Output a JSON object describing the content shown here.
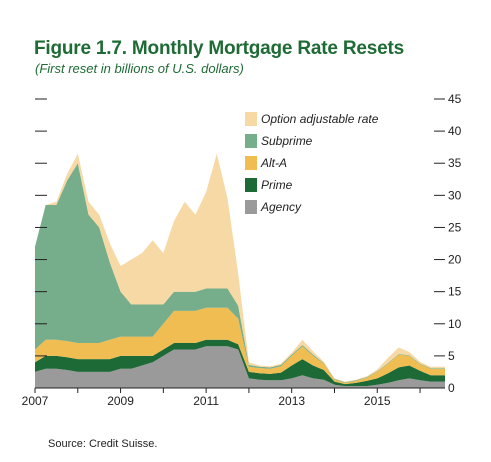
{
  "title": "Figure 1.7. Monthly Mortgage Rate Resets",
  "subtitle": "(First reset in billions of U.S. dollars)",
  "source": "Source: Credit Suisse.",
  "colors": {
    "option_arm": "#f6d9a5",
    "subprime": "#76ad8a",
    "alt_a": "#f0bd52",
    "prime": "#1d6a36",
    "agency": "#9a9a9a",
    "title": "#1e6b35",
    "axis": "#222222"
  },
  "chart_data": {
    "type": "area",
    "stacked": true,
    "x_axis": {
      "ticks": [
        "2007",
        "2009",
        "2011",
        "2013",
        "2015"
      ],
      "range": [
        "2007-01",
        "2016-08"
      ]
    },
    "y_axis": {
      "position": "right",
      "ylim": [
        0,
        45
      ],
      "ticks": [
        "0",
        "5",
        "10",
        "15",
        "20",
        "25",
        "30",
        "35",
        "40",
        "45"
      ]
    },
    "legend": {
      "placement": "top-right",
      "order": [
        "Option adjustable rate",
        "Subprime",
        "Alt-A",
        "Prime",
        "Agency"
      ]
    },
    "grid": false,
    "x": [
      "2007-01",
      "2007-04",
      "2007-07",
      "2007-10",
      "2008-01",
      "2008-04",
      "2008-07",
      "2008-10",
      "2009-01",
      "2009-04",
      "2009-07",
      "2009-10",
      "2010-01",
      "2010-04",
      "2010-07",
      "2010-10",
      "2011-01",
      "2011-04",
      "2011-07",
      "2011-10",
      "2012-01",
      "2012-04",
      "2012-07",
      "2012-10",
      "2013-01",
      "2013-04",
      "2013-07",
      "2013-10",
      "2014-01",
      "2014-04",
      "2014-07",
      "2014-10",
      "2015-01",
      "2015-04",
      "2015-07",
      "2015-10",
      "2016-01",
      "2016-04",
      "2016-08"
    ],
    "series": [
      {
        "name": "Agency",
        "values": [
          2.5,
          3.0,
          3.0,
          2.8,
          2.5,
          2.5,
          2.5,
          2.5,
          3.0,
          3.0,
          3.5,
          4.0,
          5.0,
          6.0,
          6.0,
          6.0,
          6.5,
          6.5,
          6.5,
          6.0,
          1.5,
          1.3,
          1.2,
          1.2,
          1.5,
          2.0,
          1.5,
          1.3,
          0.5,
          0.3,
          0.3,
          0.3,
          0.5,
          0.8,
          1.2,
          1.5,
          1.2,
          1.0,
          1.0
        ]
      },
      {
        "name": "Prime",
        "values": [
          1.5,
          2.0,
          2.0,
          2.0,
          2.0,
          2.0,
          2.0,
          2.0,
          2.0,
          2.0,
          1.5,
          1.0,
          1.0,
          1.0,
          1.0,
          1.0,
          1.0,
          1.0,
          1.0,
          0.8,
          1.0,
          1.0,
          1.0,
          1.2,
          2.0,
          2.5,
          2.0,
          1.5,
          0.5,
          0.3,
          0.5,
          0.8,
          1.0,
          1.5,
          2.0,
          2.0,
          1.5,
          1.0,
          1.0
        ]
      },
      {
        "name": "Alt-A",
        "values": [
          2.0,
          2.5,
          2.5,
          2.5,
          2.5,
          2.5,
          2.5,
          3.0,
          3.0,
          3.0,
          3.0,
          3.0,
          4.0,
          5.0,
          5.0,
          5.0,
          5.0,
          5.0,
          5.0,
          4.0,
          0.8,
          0.8,
          0.8,
          1.0,
          1.5,
          2.0,
          1.5,
          1.0,
          0.3,
          0.2,
          0.3,
          0.5,
          1.0,
          1.5,
          2.0,
          1.5,
          1.0,
          1.0,
          1.0
        ]
      },
      {
        "name": "Subprime",
        "values": [
          16.0,
          21.0,
          21.0,
          25.0,
          28.0,
          20.0,
          18.0,
          12.0,
          7.0,
          5.0,
          5.0,
          5.0,
          3.0,
          3.0,
          3.0,
          3.0,
          3.0,
          3.0,
          3.0,
          2.0,
          0.3,
          0.2,
          0.2,
          0.2,
          0.2,
          0.2,
          0.2,
          0.1,
          0.1,
          0.1,
          0.1,
          0.1,
          0.1,
          0.1,
          0.1,
          0.1,
          0.1,
          0.1,
          0.1
        ]
      },
      {
        "name": "Option adjustable rate",
        "values": [
          0.0,
          0.0,
          0.5,
          1.0,
          1.5,
          2.0,
          2.0,
          3.0,
          4.0,
          7.0,
          8.0,
          10.0,
          8.0,
          11.0,
          14.0,
          12.0,
          15.0,
          21.0,
          14.0,
          5.0,
          0.4,
          0.2,
          0.2,
          0.2,
          0.3,
          0.8,
          0.5,
          0.2,
          0.1,
          0.1,
          0.1,
          0.1,
          0.3,
          0.8,
          1.0,
          0.5,
          0.3,
          0.2,
          0.2
        ]
      }
    ]
  }
}
